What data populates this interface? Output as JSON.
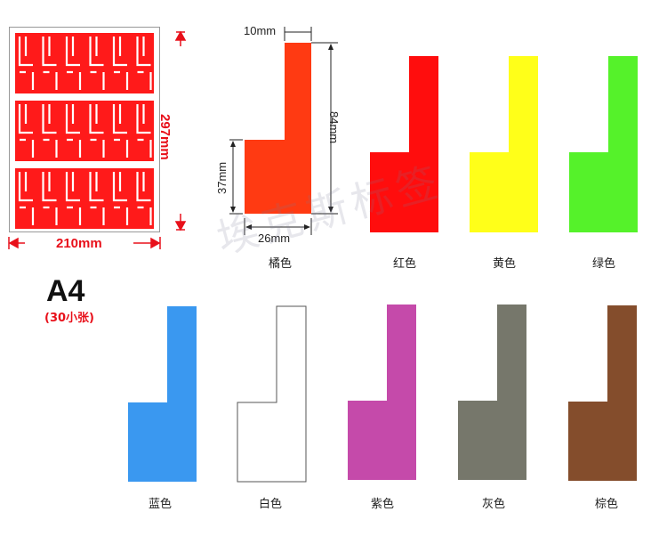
{
  "sheet": {
    "width_label": "210mm",
    "height_label": "297mm",
    "format": "A4",
    "count_label": "(30小张)",
    "label_color": "#ff1a1a"
  },
  "dimensions": {
    "tab_width": "10mm",
    "total_height": "84mm",
    "body_height": "37mm",
    "body_width": "26mm"
  },
  "labels": [
    {
      "name": "橘色",
      "color": "#ff3a12"
    },
    {
      "name": "红色",
      "color": "#ff0d0d"
    },
    {
      "name": "黄色",
      "color": "#ffff19"
    },
    {
      "name": "绿色",
      "color": "#55f22a"
    },
    {
      "name": "蓝色",
      "color": "#3a98f0"
    },
    {
      "name": "白色",
      "color": "#ffffff"
    },
    {
      "name": "紫色",
      "color": "#c54aaa"
    },
    {
      "name": "灰色",
      "color": "#76776b"
    },
    {
      "name": "棕色",
      "color": "#844d2c"
    }
  ],
  "watermark": "埃克斯标签"
}
